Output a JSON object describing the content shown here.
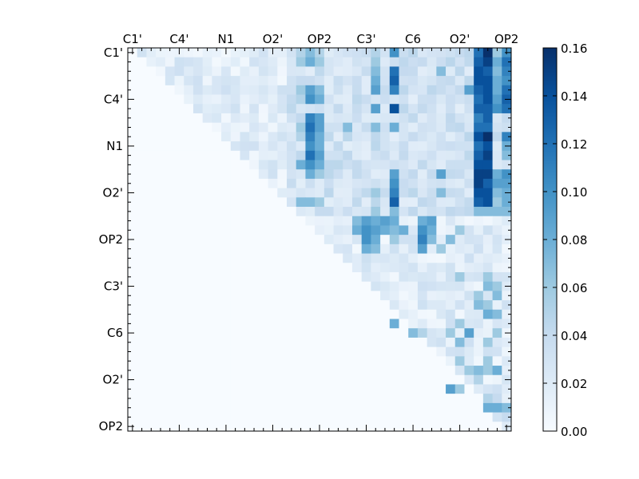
{
  "chart_data": {
    "type": "heatmap",
    "title": "",
    "xlabel": "",
    "ylabel": "",
    "x_tick_labels": [
      "C1'",
      "C4'",
      "N1",
      "O2'",
      "OP2",
      "C3'",
      "C6",
      "O2'",
      "OP2"
    ],
    "y_tick_labels": [
      "C1'",
      "C4'",
      "N1",
      "O2'",
      "OP2",
      "C3'",
      "C6",
      "O2'",
      "OP2"
    ],
    "grid_size": 41,
    "major_tick_spacing": 5,
    "color_range": [
      0.0,
      0.16
    ],
    "colormap": "Blues",
    "colorbar_ticks": [
      "0.00",
      "0.02",
      "0.04",
      "0.06",
      "0.08",
      "0.10",
      "0.12",
      "0.14",
      "0.16"
    ],
    "colorbar_tick_values": [
      0.0,
      0.02,
      0.04,
      0.06,
      0.08,
      0.1,
      0.12,
      0.14,
      0.16
    ],
    "colors": {
      "low": "#f7fbff",
      "high": "#08306b",
      "axis": "#000000"
    },
    "upper_triangle_only": true,
    "cell_values_note_removed": "",
    "cells": [
      {
        "row": 0,
        "col": 18,
        "value": 0.05
      },
      {
        "row": 0,
        "col": 19,
        "value": 0.07
      },
      {
        "row": 0,
        "col": 20,
        "value": 0.05
      },
      {
        "row": 0,
        "col": 26,
        "value": 0.05
      },
      {
        "row": 0,
        "col": 28,
        "value": 0.1
      },
      {
        "row": 0,
        "col": 37,
        "value": 0.12
      },
      {
        "row": 0,
        "col": 38,
        "value": 0.16
      },
      {
        "row": 0,
        "col": 39,
        "value": 0.06
      },
      {
        "row": 0,
        "col": 40,
        "value": 0.1
      },
      {
        "row": 1,
        "col": 18,
        "value": 0.06
      },
      {
        "row": 1,
        "col": 19,
        "value": 0.08
      },
      {
        "row": 1,
        "col": 20,
        "value": 0.06
      },
      {
        "row": 1,
        "col": 26,
        "value": 0.06
      },
      {
        "row": 1,
        "col": 37,
        "value": 0.13
      },
      {
        "row": 1,
        "col": 38,
        "value": 0.15
      },
      {
        "row": 1,
        "col": 39,
        "value": 0.08
      },
      {
        "row": 1,
        "col": 40,
        "value": 0.12
      },
      {
        "row": 2,
        "col": 26,
        "value": 0.07
      },
      {
        "row": 2,
        "col": 28,
        "value": 0.12
      },
      {
        "row": 2,
        "col": 33,
        "value": 0.07
      },
      {
        "row": 2,
        "col": 37,
        "value": 0.14
      },
      {
        "row": 2,
        "col": 38,
        "value": 0.13
      },
      {
        "row": 2,
        "col": 39,
        "value": 0.07
      },
      {
        "row": 2,
        "col": 40,
        "value": 0.11
      },
      {
        "row": 3,
        "col": 26,
        "value": 0.08
      },
      {
        "row": 3,
        "col": 28,
        "value": 0.13
      },
      {
        "row": 3,
        "col": 37,
        "value": 0.14
      },
      {
        "row": 3,
        "col": 38,
        "value": 0.14
      },
      {
        "row": 3,
        "col": 39,
        "value": 0.08
      },
      {
        "row": 3,
        "col": 40,
        "value": 0.1
      },
      {
        "row": 4,
        "col": 18,
        "value": 0.06
      },
      {
        "row": 4,
        "col": 19,
        "value": 0.09
      },
      {
        "row": 4,
        "col": 20,
        "value": 0.07
      },
      {
        "row": 4,
        "col": 26,
        "value": 0.09
      },
      {
        "row": 4,
        "col": 28,
        "value": 0.11
      },
      {
        "row": 4,
        "col": 36,
        "value": 0.09
      },
      {
        "row": 4,
        "col": 37,
        "value": 0.13
      },
      {
        "row": 4,
        "col": 38,
        "value": 0.14
      },
      {
        "row": 4,
        "col": 39,
        "value": 0.08
      },
      {
        "row": 4,
        "col": 40,
        "value": 0.12
      },
      {
        "row": 5,
        "col": 18,
        "value": 0.05
      },
      {
        "row": 5,
        "col": 19,
        "value": 0.1
      },
      {
        "row": 5,
        "col": 20,
        "value": 0.08
      },
      {
        "row": 5,
        "col": 37,
        "value": 0.12
      },
      {
        "row": 5,
        "col": 38,
        "value": 0.14
      },
      {
        "row": 5,
        "col": 39,
        "value": 0.09
      },
      {
        "row": 5,
        "col": 40,
        "value": 0.13
      },
      {
        "row": 6,
        "col": 26,
        "value": 0.09
      },
      {
        "row": 6,
        "col": 28,
        "value": 0.14
      },
      {
        "row": 6,
        "col": 37,
        "value": 0.13
      },
      {
        "row": 6,
        "col": 38,
        "value": 0.13
      },
      {
        "row": 6,
        "col": 39,
        "value": 0.1
      },
      {
        "row": 6,
        "col": 40,
        "value": 0.12
      },
      {
        "row": 7,
        "col": 19,
        "value": 0.11
      },
      {
        "row": 7,
        "col": 20,
        "value": 0.09
      },
      {
        "row": 7,
        "col": 37,
        "value": 0.11
      },
      {
        "row": 7,
        "col": 38,
        "value": 0.13
      },
      {
        "row": 8,
        "col": 18,
        "value": 0.06
      },
      {
        "row": 8,
        "col": 19,
        "value": 0.12
      },
      {
        "row": 8,
        "col": 20,
        "value": 0.09
      },
      {
        "row": 8,
        "col": 23,
        "value": 0.07
      },
      {
        "row": 8,
        "col": 26,
        "value": 0.07
      },
      {
        "row": 8,
        "col": 28,
        "value": 0.08
      },
      {
        "row": 8,
        "col": 37,
        "value": 0.12
      },
      {
        "row": 8,
        "col": 38,
        "value": 0.12
      },
      {
        "row": 9,
        "col": 18,
        "value": 0.05
      },
      {
        "row": 9,
        "col": 19,
        "value": 0.11
      },
      {
        "row": 9,
        "col": 20,
        "value": 0.08
      },
      {
        "row": 9,
        "col": 37,
        "value": 0.14
      },
      {
        "row": 9,
        "col": 38,
        "value": 0.16
      },
      {
        "row": 9,
        "col": 40,
        "value": 0.11
      },
      {
        "row": 10,
        "col": 19,
        "value": 0.1
      },
      {
        "row": 10,
        "col": 20,
        "value": 0.08
      },
      {
        "row": 10,
        "col": 37,
        "value": 0.12
      },
      {
        "row": 10,
        "col": 38,
        "value": 0.14
      },
      {
        "row": 10,
        "col": 40,
        "value": 0.08
      },
      {
        "row": 11,
        "col": 19,
        "value": 0.12
      },
      {
        "row": 11,
        "col": 20,
        "value": 0.09
      },
      {
        "row": 11,
        "col": 37,
        "value": 0.13
      },
      {
        "row": 11,
        "col": 38,
        "value": 0.15
      },
      {
        "row": 11,
        "col": 40,
        "value": 0.07
      },
      {
        "row": 12,
        "col": 18,
        "value": 0.08
      },
      {
        "row": 12,
        "col": 19,
        "value": 0.1
      },
      {
        "row": 12,
        "col": 20,
        "value": 0.08
      },
      {
        "row": 12,
        "col": 37,
        "value": 0.14
      },
      {
        "row": 12,
        "col": 38,
        "value": 0.14
      },
      {
        "row": 13,
        "col": 19,
        "value": 0.08
      },
      {
        "row": 13,
        "col": 20,
        "value": 0.06
      },
      {
        "row": 13,
        "col": 28,
        "value": 0.09
      },
      {
        "row": 13,
        "col": 33,
        "value": 0.09
      },
      {
        "row": 13,
        "col": 37,
        "value": 0.15
      },
      {
        "row": 13,
        "col": 38,
        "value": 0.15
      },
      {
        "row": 13,
        "col": 39,
        "value": 0.08
      },
      {
        "row": 13,
        "col": 40,
        "value": 0.1
      },
      {
        "row": 14,
        "col": 28,
        "value": 0.1
      },
      {
        "row": 14,
        "col": 37,
        "value": 0.15
      },
      {
        "row": 14,
        "col": 38,
        "value": 0.13
      },
      {
        "row": 14,
        "col": 39,
        "value": 0.09
      },
      {
        "row": 14,
        "col": 40,
        "value": 0.09
      },
      {
        "row": 15,
        "col": 26,
        "value": 0.06
      },
      {
        "row": 15,
        "col": 28,
        "value": 0.11
      },
      {
        "row": 15,
        "col": 33,
        "value": 0.07
      },
      {
        "row": 15,
        "col": 37,
        "value": 0.14
      },
      {
        "row": 15,
        "col": 38,
        "value": 0.14
      },
      {
        "row": 15,
        "col": 39,
        "value": 0.07
      },
      {
        "row": 15,
        "col": 40,
        "value": 0.08
      },
      {
        "row": 16,
        "col": 18,
        "value": 0.07
      },
      {
        "row": 16,
        "col": 19,
        "value": 0.07
      },
      {
        "row": 16,
        "col": 20,
        "value": 0.06
      },
      {
        "row": 16,
        "col": 28,
        "value": 0.13
      },
      {
        "row": 16,
        "col": 37,
        "value": 0.13
      },
      {
        "row": 16,
        "col": 38,
        "value": 0.14
      },
      {
        "row": 16,
        "col": 39,
        "value": 0.06
      },
      {
        "row": 16,
        "col": 40,
        "value": 0.08
      },
      {
        "row": 17,
        "col": 26,
        "value": 0.06
      },
      {
        "row": 17,
        "col": 28,
        "value": 0.07
      },
      {
        "row": 17,
        "col": 37,
        "value": 0.07
      },
      {
        "row": 17,
        "col": 38,
        "value": 0.07
      },
      {
        "row": 17,
        "col": 39,
        "value": 0.07
      },
      {
        "row": 17,
        "col": 40,
        "value": 0.07
      },
      {
        "row": 18,
        "col": 24,
        "value": 0.07
      },
      {
        "row": 18,
        "col": 25,
        "value": 0.09
      },
      {
        "row": 18,
        "col": 26,
        "value": 0.08
      },
      {
        "row": 18,
        "col": 27,
        "value": 0.09
      },
      {
        "row": 18,
        "col": 28,
        "value": 0.08
      },
      {
        "row": 18,
        "col": 31,
        "value": 0.08
      },
      {
        "row": 18,
        "col": 32,
        "value": 0.09
      },
      {
        "row": 19,
        "col": 24,
        "value": 0.08
      },
      {
        "row": 19,
        "col": 25,
        "value": 0.1
      },
      {
        "row": 19,
        "col": 26,
        "value": 0.09
      },
      {
        "row": 19,
        "col": 27,
        "value": 0.08
      },
      {
        "row": 19,
        "col": 28,
        "value": 0.07
      },
      {
        "row": 19,
        "col": 29,
        "value": 0.08
      },
      {
        "row": 19,
        "col": 31,
        "value": 0.1
      },
      {
        "row": 19,
        "col": 32,
        "value": 0.08
      },
      {
        "row": 19,
        "col": 35,
        "value": 0.06
      },
      {
        "row": 20,
        "col": 25,
        "value": 0.1
      },
      {
        "row": 20,
        "col": 26,
        "value": 0.08
      },
      {
        "row": 20,
        "col": 28,
        "value": 0.06
      },
      {
        "row": 20,
        "col": 31,
        "value": 0.11
      },
      {
        "row": 20,
        "col": 32,
        "value": 0.07
      },
      {
        "row": 20,
        "col": 34,
        "value": 0.07
      },
      {
        "row": 21,
        "col": 25,
        "value": 0.08
      },
      {
        "row": 21,
        "col": 26,
        "value": 0.07
      },
      {
        "row": 21,
        "col": 31,
        "value": 0.09
      },
      {
        "row": 21,
        "col": 33,
        "value": 0.06
      },
      {
        "row": 24,
        "col": 35,
        "value": 0.06
      },
      {
        "row": 24,
        "col": 38,
        "value": 0.06
      },
      {
        "row": 25,
        "col": 38,
        "value": 0.07
      },
      {
        "row": 25,
        "col": 39,
        "value": 0.06
      },
      {
        "row": 26,
        "col": 37,
        "value": 0.06
      },
      {
        "row": 26,
        "col": 39,
        "value": 0.07
      },
      {
        "row": 27,
        "col": 37,
        "value": 0.07
      },
      {
        "row": 27,
        "col": 38,
        "value": 0.06
      },
      {
        "row": 28,
        "col": 38,
        "value": 0.08
      },
      {
        "row": 28,
        "col": 39,
        "value": 0.07
      },
      {
        "row": 29,
        "col": 28,
        "value": 0.08
      },
      {
        "row": 29,
        "col": 35,
        "value": 0.06
      },
      {
        "row": 30,
        "col": 30,
        "value": 0.07
      },
      {
        "row": 30,
        "col": 31,
        "value": 0.05
      },
      {
        "row": 30,
        "col": 34,
        "value": 0.06
      },
      {
        "row": 30,
        "col": 36,
        "value": 0.09
      },
      {
        "row": 30,
        "col": 39,
        "value": 0.06
      },
      {
        "row": 31,
        "col": 35,
        "value": 0.07
      },
      {
        "row": 31,
        "col": 38,
        "value": 0.06
      },
      {
        "row": 33,
        "col": 35,
        "value": 0.06
      },
      {
        "row": 33,
        "col": 38,
        "value": 0.06
      },
      {
        "row": 34,
        "col": 36,
        "value": 0.06
      },
      {
        "row": 34,
        "col": 37,
        "value": 0.07
      },
      {
        "row": 34,
        "col": 38,
        "value": 0.06
      },
      {
        "row": 34,
        "col": 39,
        "value": 0.08
      },
      {
        "row": 35,
        "col": 37,
        "value": 0.05
      },
      {
        "row": 36,
        "col": 34,
        "value": 0.09
      },
      {
        "row": 36,
        "col": 35,
        "value": 0.06
      },
      {
        "row": 37,
        "col": 38,
        "value": 0.05
      },
      {
        "row": 37,
        "col": 39,
        "value": 0.04
      },
      {
        "row": 38,
        "col": 38,
        "value": 0.08
      },
      {
        "row": 38,
        "col": 39,
        "value": 0.08
      },
      {
        "row": 38,
        "col": 40,
        "value": 0.07
      },
      {
        "row": 39,
        "col": 39,
        "value": 0.03
      },
      {
        "row": 39,
        "col": 40,
        "value": 0.04
      },
      {
        "row": 40,
        "col": 40,
        "value": 0.02
      }
    ]
  }
}
